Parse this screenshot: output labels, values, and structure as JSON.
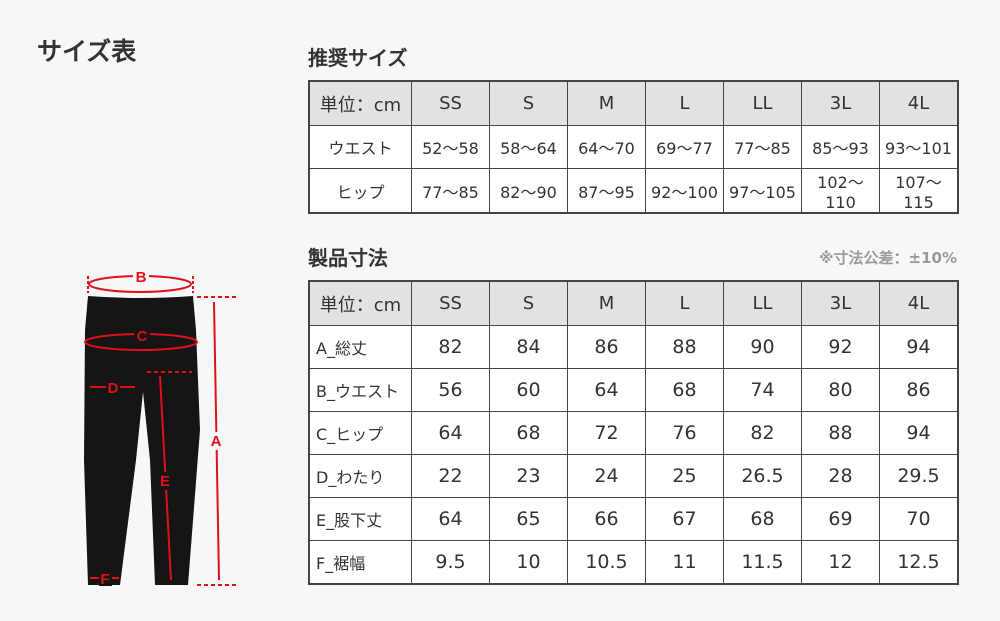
{
  "page_title": "サイズ表",
  "recommended": {
    "heading": "推奨サイズ",
    "unit_label": "単位：cm",
    "sizes": [
      "SS",
      "S",
      "M",
      "L",
      "LL",
      "3L",
      "4L"
    ],
    "rows": [
      {
        "label": "ウエスト",
        "values": [
          "52〜58",
          "58〜64",
          "64〜70",
          "69〜77",
          "77〜85",
          "85〜93",
          "93〜101"
        ]
      },
      {
        "label": "ヒップ",
        "values": [
          "77〜85",
          "82〜90",
          "87〜95",
          "92〜100",
          "97〜105",
          "102〜110",
          "107〜115"
        ]
      }
    ]
  },
  "product": {
    "heading": "製品寸法",
    "tolerance_note": "※寸法公差：±10%",
    "unit_label": "単位：cm",
    "sizes": [
      "SS",
      "S",
      "M",
      "L",
      "LL",
      "3L",
      "4L"
    ],
    "rows": [
      {
        "label": "A_総丈",
        "values": [
          "82",
          "84",
          "86",
          "88",
          "90",
          "92",
          "94"
        ]
      },
      {
        "label": "B_ウエスト",
        "values": [
          "56",
          "60",
          "64",
          "68",
          "74",
          "80",
          "86"
        ]
      },
      {
        "label": "C_ヒップ",
        "values": [
          "64",
          "68",
          "72",
          "76",
          "82",
          "88",
          "94"
        ]
      },
      {
        "label": "D_わたり",
        "values": [
          "22",
          "23",
          "24",
          "25",
          "26.5",
          "28",
          "29.5"
        ]
      },
      {
        "label": "E_股下丈",
        "values": [
          "64",
          "65",
          "66",
          "67",
          "68",
          "69",
          "70"
        ]
      },
      {
        "label": "F_裾幅",
        "values": [
          "9.5",
          "10",
          "10.5",
          "11",
          "11.5",
          "12",
          "12.5"
        ]
      }
    ]
  },
  "diagram": {
    "labels": [
      "A",
      "B",
      "C",
      "D",
      "E",
      "F"
    ],
    "accent_color": "#e0101a",
    "garment_color": "#151515"
  }
}
